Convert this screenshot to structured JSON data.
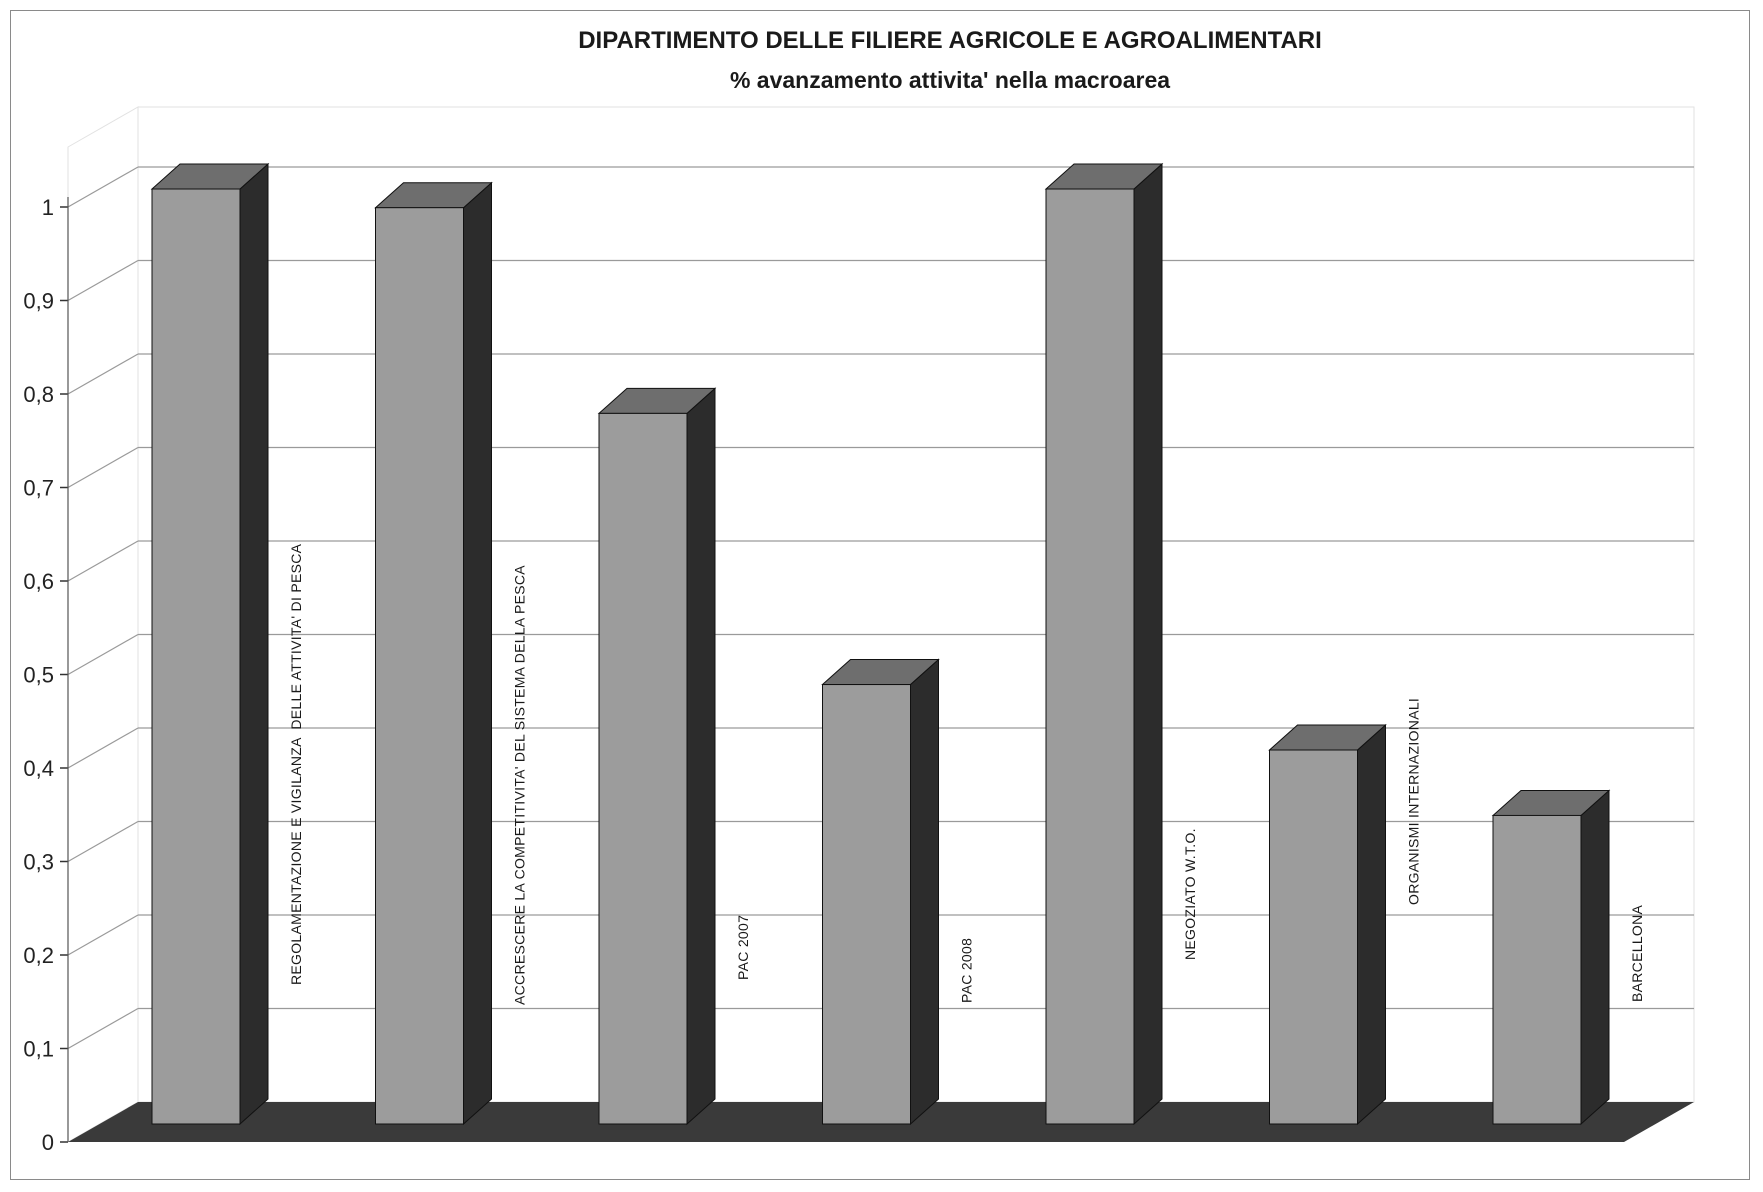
{
  "chart_data": {
    "type": "bar",
    "title": "DIPARTIMENTO DELLE FILIERE AGRICOLE E AGROALIMENTARI",
    "subtitle": "% avanzamento attivita' nella macroarea",
    "categories": [
      "REGOLAMENTAZIONE E VIGILANZA  DELLE ATTIVITA' DI PESCA",
      "ACCRESCERE LA COMPETITIVITA' DEL SISTEMA DELLA PESCA",
      "PAC 2007",
      "PAC 2008",
      "NEGOZIATO W.T.O.",
      "ORGANISMI INTERNAZIONALI",
      "BARCELLONA"
    ],
    "values": [
      1.0,
      0.98,
      0.76,
      0.47,
      1.0,
      0.4,
      0.33
    ],
    "y_ticks": [
      "0",
      "0,1",
      "0,2",
      "0,3",
      "0,4",
      "0,5",
      "0,6",
      "0,7",
      "0,8",
      "0,9",
      "1"
    ],
    "ylim": [
      0,
      1
    ],
    "grid": true,
    "legend": "none",
    "colors": {
      "bar_front": "#9c9c9c",
      "bar_top": "#6e6e6e",
      "bar_side": "#2c2c2c",
      "floor": "#3a3a3a",
      "gridline": "#9a9a9a"
    }
  }
}
